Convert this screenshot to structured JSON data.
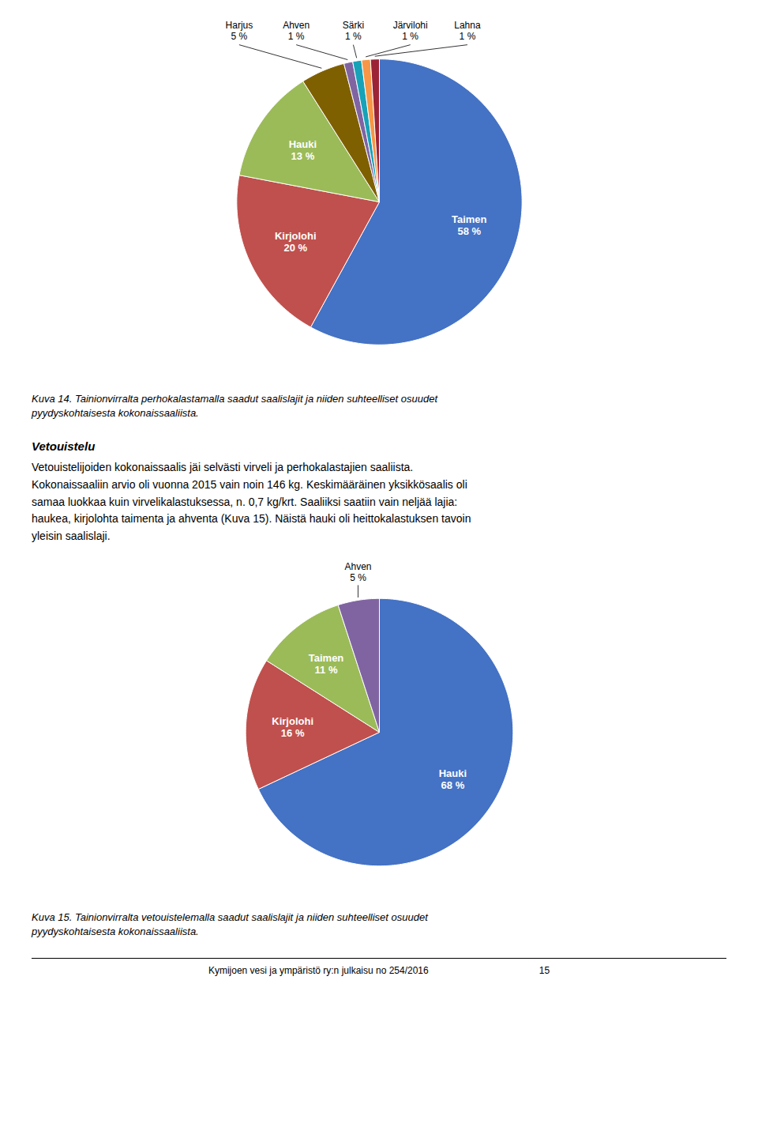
{
  "chart_data": [
    {
      "type": "pie",
      "categories": [
        "Taimen",
        "Kirjolohi",
        "Hauki",
        "Harjus",
        "Ahven",
        "Särki",
        "Järvilohi",
        "Lahna"
      ],
      "values": [
        58,
        20,
        13,
        5,
        1,
        1,
        1,
        1
      ],
      "value_labels": [
        "58 %",
        "20 %",
        "13 %",
        "5 %",
        "1 %",
        "1 %",
        "1 %",
        "1 %"
      ],
      "colors": [
        "#4472C4",
        "#C0504D",
        "#9BBB59",
        "#7F6000",
        "#8064A2",
        "#17A2B8",
        "#F79646",
        "#9B2335"
      ],
      "data_labels": true,
      "caption": "Kuva 14.  Tainionvirralta perhokalastamalla saadut saalislajit ja niiden suhteelliset osuudet\npyydyskohtaisesta kokonaissaaliista."
    },
    {
      "type": "pie",
      "title": "Vetouistelu",
      "subtitle": "Vetouistelijoiden kokonaissaalis jäi selvästi virveli ja perhokalastajien saaliista.\nKokonaissaaliin arvio oli vuonna 2015 vain noin 146 kg. Keskimääräinen yksikkösaalis oli\nsamaa luokkaa kuin virvelikalastuksessa, n. 0,7 kg/krt. Saaliiksi saatiin vain neljää lajia:\nhaukea, kirjolohta taimenta ja ahventa (Kuva 15). Näistä hauki oli heittokalastuksen tavoin\nyleisin saalislaji.",
      "categories": [
        "Hauki",
        "Kirjolohi",
        "Taimen",
        "Ahven"
      ],
      "values": [
        68,
        16,
        11,
        5
      ],
      "value_labels": [
        "68 %",
        "16 %",
        "11 %",
        "5 %"
      ],
      "colors": [
        "#4472C4",
        "#C0504D",
        "#9BBB59",
        "#8064A2"
      ],
      "data_labels": true,
      "caption": "Kuva 15.  Tainionvirralta vetouistelemalla saadut saalislajit ja niiden suhteelliset osuudet\npyydyskohtaisesta kokonaissaaliista.",
      "annotations": [
        "Kymijoen vesi ja ympäristö ry:n julkaisu no 254/2016                                          15"
      ]
    }
  ]
}
